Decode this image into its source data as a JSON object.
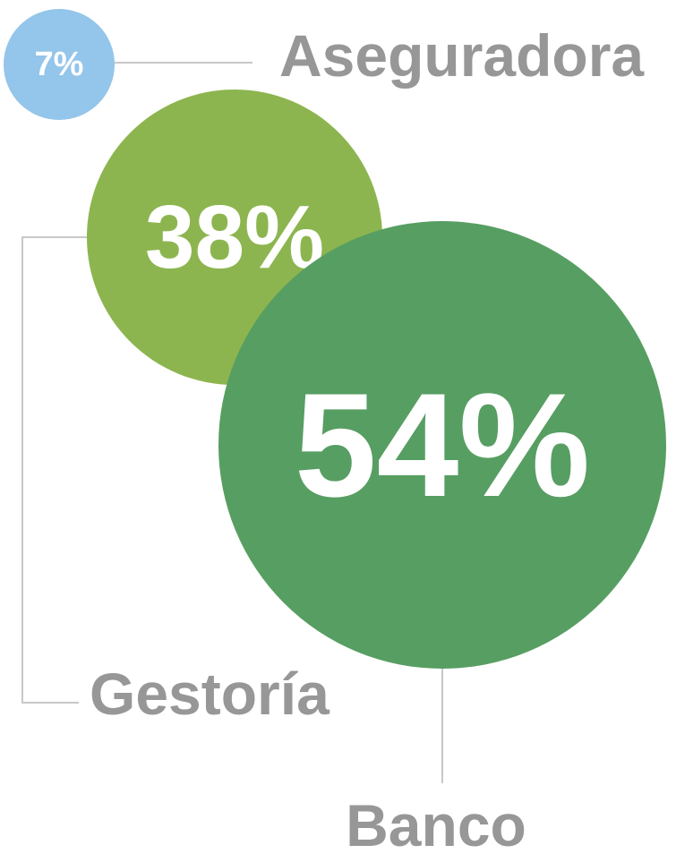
{
  "chart_data": {
    "type": "bubble",
    "categories": [
      "Aseguradora",
      "Gestoría",
      "Banco"
    ],
    "values": [
      7,
      38,
      54
    ],
    "value_labels": [
      "7%",
      "38%",
      "54%"
    ],
    "colors": [
      "#94c5ea",
      "#8db54f",
      "#579e62"
    ]
  }
}
